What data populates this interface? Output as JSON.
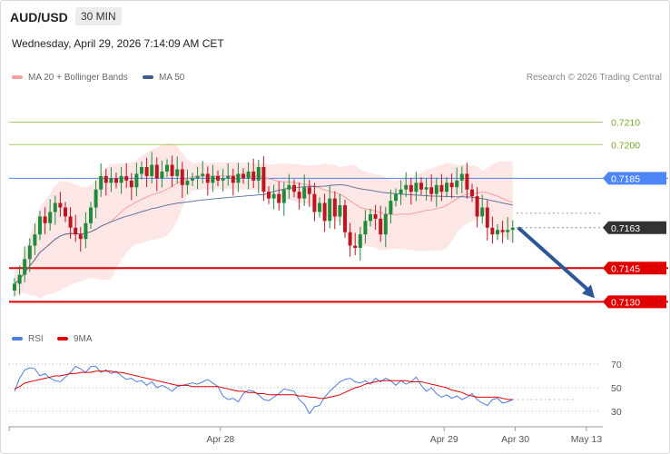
{
  "header": {
    "symbol": "AUD/USD",
    "timeframe": "30 MIN",
    "datetime": "Wednesday, April 29, 2026 7:14:09 AM CET"
  },
  "legend": {
    "ma20": "MA 20 + Bollinger Bands",
    "ma50": "MA 50",
    "credit": "Research © 2026 Trading Central",
    "rsi": "RSI",
    "ma9": "9MA"
  },
  "colors": {
    "green_level": "#a8cc66",
    "blue_level": "#4f86f7",
    "red_level": "#e00000",
    "current": "#333333",
    "bollinger": "#fde2e2",
    "ma20": "#f4a0a0",
    "ma50": "#3c5a8c",
    "up": "#1e8c3a",
    "down": "#c0141f",
    "arrow": "#2b5797"
  },
  "chart_data": {
    "type": "candlestick",
    "ylim": [
      0.7118,
      0.7226
    ],
    "levels": [
      {
        "value": 0.721,
        "label": "0.7210",
        "style": "green"
      },
      {
        "value": 0.72,
        "label": "0.7200",
        "style": "green"
      },
      {
        "value": 0.7185,
        "label": "0.7185",
        "style": "blue"
      },
      {
        "value": 0.7163,
        "label": "0.7163",
        "style": "current"
      },
      {
        "value": 0.7145,
        "label": "0.7145",
        "style": "red"
      },
      {
        "value": 0.713,
        "label": "0.7130",
        "style": "red"
      }
    ],
    "forecast_target": 0.713,
    "close": [
      0.7138,
      0.7142,
      0.7149,
      0.7155,
      0.716,
      0.7168,
      0.7165,
      0.717,
      0.7174,
      0.7172,
      0.7168,
      0.7163,
      0.716,
      0.7158,
      0.7165,
      0.7172,
      0.718,
      0.7186,
      0.7183,
      0.7185,
      0.7183,
      0.7186,
      0.7184,
      0.7181,
      0.7187,
      0.719,
      0.7186,
      0.7191,
      0.7185,
      0.7188,
      0.7191,
      0.7186,
      0.7189,
      0.7182,
      0.7184,
      0.7185,
      0.7186,
      0.7187,
      0.7183,
      0.7186,
      0.7184,
      0.7185,
      0.7186,
      0.7183,
      0.7187,
      0.7185,
      0.7188,
      0.7184,
      0.719,
      0.7179,
      0.7176,
      0.7178,
      0.7174,
      0.718,
      0.7182,
      0.7179,
      0.7176,
      0.7181,
      0.7178,
      0.717,
      0.7174,
      0.7166,
      0.7176,
      0.7168,
      0.7173,
      0.7161,
      0.7155,
      0.7154,
      0.716,
      0.7166,
      0.7169,
      0.7167,
      0.716,
      0.7169,
      0.7175,
      0.7178,
      0.718,
      0.7182,
      0.7179,
      0.7183,
      0.718,
      0.7181,
      0.7178,
      0.7182,
      0.7179,
      0.7183,
      0.7181,
      0.7184,
      0.7187,
      0.718,
      0.7177,
      0.7168,
      0.7172,
      0.7163,
      0.716,
      0.7162,
      0.7161,
      0.7162,
      0.7163
    ],
    "rsi": [
      47,
      58,
      65,
      67,
      66,
      60,
      62,
      58,
      56,
      55,
      59,
      63,
      68,
      66,
      63,
      68,
      68,
      63,
      65,
      62,
      64,
      60,
      57,
      58,
      55,
      56,
      52,
      55,
      50,
      52,
      50,
      47,
      51,
      52,
      53,
      54,
      53,
      55,
      57,
      54,
      51,
      43,
      40,
      41,
      38,
      45,
      48,
      47,
      44,
      40,
      39,
      42,
      45,
      49,
      48,
      47,
      40,
      36,
      28,
      34,
      35,
      42,
      47,
      51,
      55,
      57,
      58,
      55,
      54,
      56,
      53,
      58,
      55,
      58,
      56,
      52,
      56,
      53,
      55,
      59,
      52,
      47,
      50,
      45,
      42,
      44,
      41,
      43,
      40,
      42,
      45,
      40,
      37,
      35,
      40,
      41,
      37,
      38,
      40
    ],
    "rsi_ma9": [
      49,
      51,
      54,
      55,
      56,
      57,
      58,
      59,
      60,
      60,
      61,
      62,
      62,
      63,
      63,
      63,
      64,
      64,
      64,
      64,
      63,
      63,
      62,
      61,
      60,
      59,
      58,
      57,
      56,
      55,
      54,
      53,
      52,
      52,
      52,
      51,
      51,
      51,
      51,
      51,
      51,
      50,
      49,
      48,
      47,
      47,
      46,
      46,
      45,
      45,
      44,
      44,
      44,
      44,
      44,
      44,
      43,
      43,
      42,
      42,
      41,
      41,
      42,
      43,
      44,
      46,
      48,
      50,
      51,
      53,
      54,
      55,
      56,
      56,
      56,
      56,
      56,
      56,
      55,
      55,
      55,
      54,
      53,
      52,
      51,
      50,
      48,
      47,
      46,
      44,
      43,
      42,
      42,
      42,
      42,
      42,
      41,
      40,
      40
    ],
    "rsi_levels": [
      70,
      50,
      30
    ],
    "x_labels": [
      {
        "label": "Apr 28",
        "index": 40.5
      },
      {
        "label": "Apr 29",
        "index": 84.5
      },
      {
        "label": "Apr 30",
        "index": 98.5
      },
      {
        "label": "May 13",
        "index": 112.5
      }
    ]
  }
}
